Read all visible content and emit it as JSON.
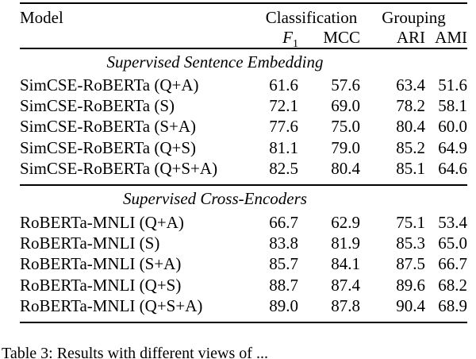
{
  "page": {
    "background": "#ffffff",
    "text_color": "#000000"
  },
  "table": {
    "header": {
      "model_label": "Model",
      "groups": [
        {
          "label": "Classification"
        },
        {
          "label": "Grouping"
        }
      ],
      "metrics": [
        {
          "label": "F",
          "subscript": "1"
        },
        {
          "label": "MCC"
        },
        {
          "label": "ARI"
        },
        {
          "label": "AMI"
        }
      ]
    },
    "sections": [
      {
        "title": "Supervised Sentence Embedding",
        "rows": [
          {
            "model": "SimCSE-RoBERTa (Q+A)",
            "values": [
              "61.6",
              "57.6",
              "63.4",
              "51.6"
            ],
            "bold": [
              false,
              false,
              false,
              false
            ]
          },
          {
            "model": "SimCSE-RoBERTa (S)",
            "values": [
              "72.1",
              "69.0",
              "78.2",
              "58.1"
            ],
            "bold": [
              false,
              false,
              false,
              false
            ]
          },
          {
            "model": "SimCSE-RoBERTa (S+A)",
            "values": [
              "77.6",
              "75.0",
              "80.4",
              "60.0"
            ],
            "bold": [
              false,
              false,
              false,
              false
            ]
          },
          {
            "model": "SimCSE-RoBERTa (Q+S)",
            "values": [
              "81.1",
              "79.0",
              "85.2",
              "64.9"
            ],
            "bold": [
              false,
              false,
              true,
              true
            ]
          },
          {
            "model": "SimCSE-RoBERTa (Q+S+A)",
            "values": [
              "82.5",
              "80.4",
              "85.1",
              "64.6"
            ],
            "bold": [
              true,
              true,
              false,
              false
            ]
          }
        ]
      },
      {
        "title": "Supervised Cross-Encoders",
        "rows": [
          {
            "model": "RoBERTa-MNLI (Q+A)",
            "values": [
              "66.7",
              "62.9",
              "75.1",
              "53.4"
            ],
            "bold": [
              false,
              false,
              false,
              false
            ]
          },
          {
            "model": "RoBERTa-MNLI (S)",
            "values": [
              "83.8",
              "81.9",
              "85.3",
              "65.0"
            ],
            "bold": [
              false,
              false,
              false,
              false
            ]
          },
          {
            "model": "RoBERTa-MNLI (S+A)",
            "values": [
              "85.7",
              "84.1",
              "87.5",
              "66.7"
            ],
            "bold": [
              false,
              false,
              false,
              false
            ]
          },
          {
            "model": "RoBERTa-MNLI (Q+S)",
            "values": [
              "88.7",
              "87.4",
              "89.6",
              "68.2"
            ],
            "bold": [
              false,
              false,
              false,
              false
            ]
          },
          {
            "model": "RoBERTa-MNLI (Q+S+A)",
            "values": [
              "89.0",
              "87.8",
              "90.4",
              "68.9"
            ],
            "bold": [
              true,
              true,
              true,
              true
            ]
          }
        ]
      }
    ]
  },
  "caption": "Table 3: Results with different views of ..."
}
